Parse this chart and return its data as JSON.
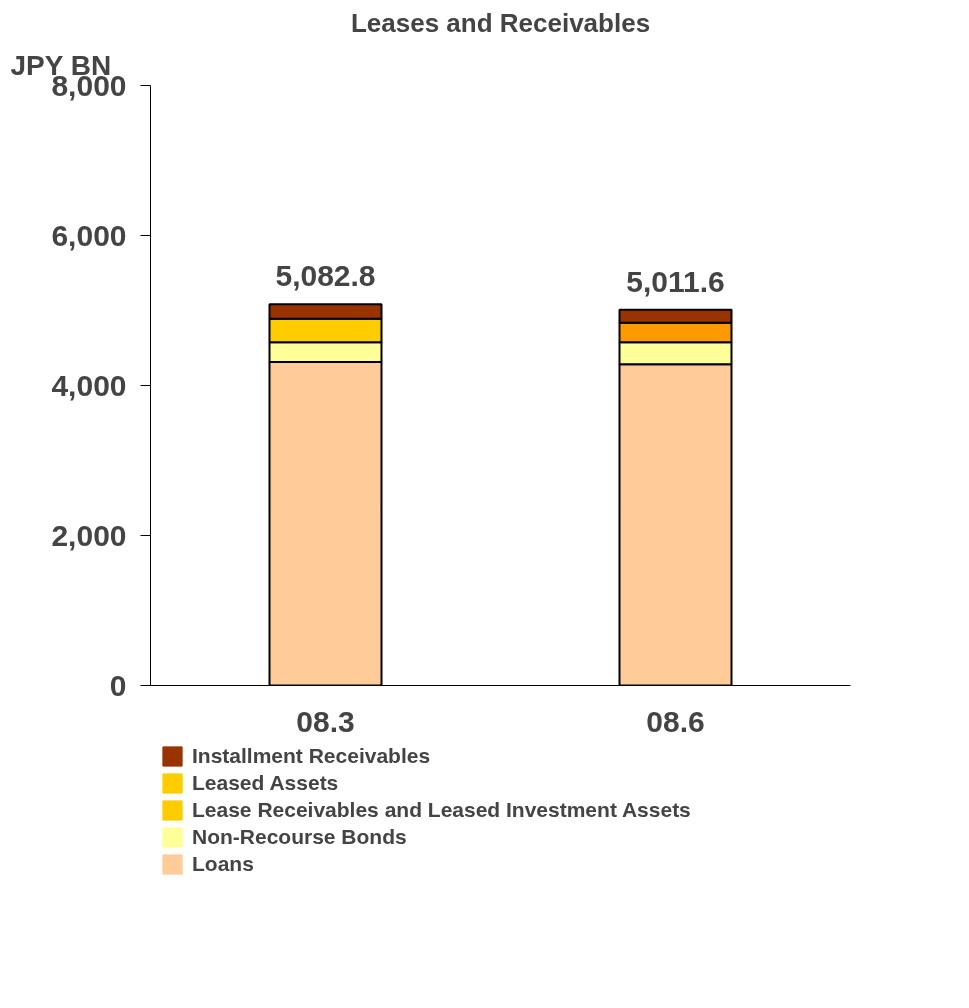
{
  "chart_data": {
    "type": "bar",
    "title": "Leases and Receivables",
    "ylabel": "JPY BN",
    "categories": [
      "08.3",
      "08.6"
    ],
    "stacked": true,
    "series": [
      {
        "name": "Loans",
        "color": "#ffcc99",
        "values": [
          4312,
          4285
        ]
      },
      {
        "name": "Non-Recourse Bonds",
        "color": "#ffff99",
        "values": [
          266,
          292
        ]
      },
      {
        "name": "Lease Receivables and Leased Investment Assets",
        "color": "#ffcc00",
        "colors": [
          "#ffcc00",
          "#ff9900"
        ],
        "values": [
          313,
          261
        ]
      },
      {
        "name": "Leased Assets",
        "color": "#ffcc00",
        "values": [
          null,
          null
        ]
      },
      {
        "name": "Installment Receivables",
        "color": "#993300",
        "values": [
          191.8,
          173.6
        ]
      }
    ],
    "totals": [
      "5,082.8",
      "5,011.6"
    ],
    "ylim": [
      0,
      8000
    ],
    "yticks": [
      {
        "value": 0,
        "label": "0"
      },
      {
        "value": 2000,
        "label": "2,000"
      },
      {
        "value": 4000,
        "label": "4,000"
      },
      {
        "value": 6000,
        "label": "6,000"
      },
      {
        "value": 8000,
        "label": "8,000"
      }
    ],
    "grid": false,
    "legend": "bottom"
  }
}
